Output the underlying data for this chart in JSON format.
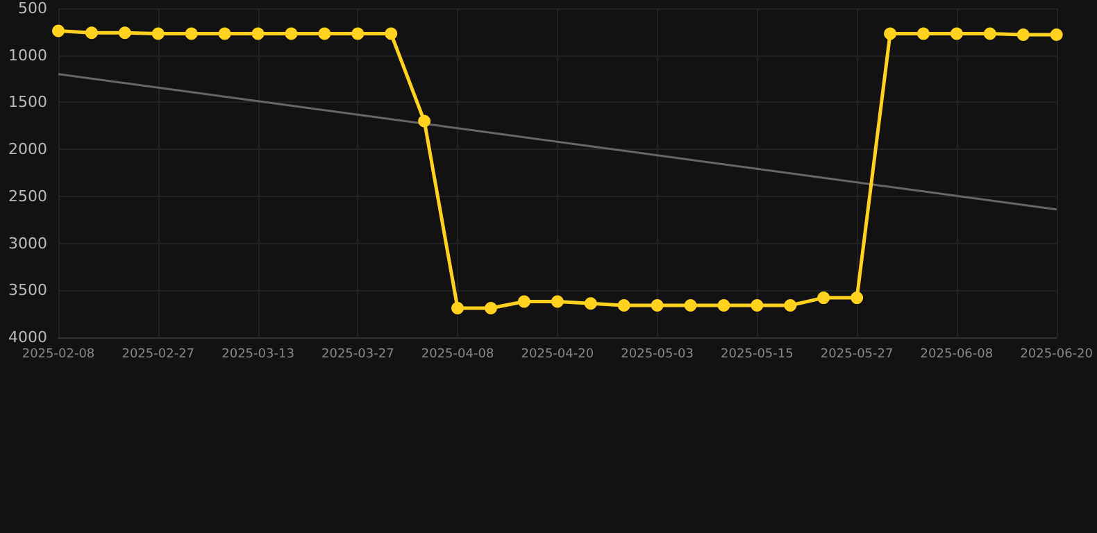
{
  "chart_data": {
    "type": "line",
    "categories": [
      "2025-02-08",
      null,
      null,
      "2025-02-27",
      null,
      null,
      "2025-03-13",
      null,
      null,
      "2025-03-27",
      null,
      null,
      "2025-04-08",
      null,
      null,
      "2025-04-20",
      null,
      null,
      "2025-05-03",
      null,
      null,
      "2025-05-15",
      null,
      null,
      "2025-05-27",
      null,
      null,
      "2025-06-08",
      null,
      null,
      "2025-06-20"
    ],
    "series": [
      {
        "color": "#ffd21f",
        "marker": "circle",
        "values": [
          740,
          760,
          760,
          770,
          770,
          770,
          770,
          770,
          770,
          770,
          770,
          1700,
          3690,
          3690,
          3620,
          3620,
          3640,
          3660,
          3660,
          3660,
          3660,
          3660,
          3660,
          3580,
          3580,
          770,
          770,
          770,
          770,
          780,
          780
        ]
      },
      {
        "color": "#666666",
        "marker": "none",
        "values": [
          1200,
          1248,
          1296,
          1344,
          1392,
          1440,
          1488,
          1536,
          1584,
          1632,
          1680,
          1728,
          1776,
          1824,
          1872,
          1920,
          1968,
          2016,
          2064,
          2112,
          2160,
          2208,
          2256,
          2304,
          2352,
          2400,
          2448,
          2496,
          2544,
          2592,
          2640
        ]
      }
    ],
    "ylim": [
      4000,
      500
    ],
    "yticks": [
      500,
      1000,
      1500,
      2000,
      2500,
      3000,
      3500,
      4000
    ],
    "grid": true
  }
}
